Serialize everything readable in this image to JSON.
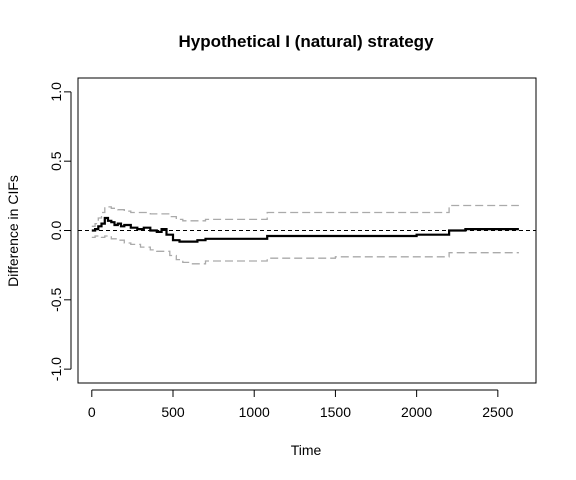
{
  "chart_data": {
    "type": "line",
    "title": "Hypothetical I (natural) strategy",
    "xlabel": "Time",
    "ylabel": "Difference in CIFs",
    "xlim": [
      -85,
      2735
    ],
    "ylim": [
      -1.1,
      1.1
    ],
    "xticks": [
      0,
      500,
      1000,
      1500,
      2000,
      2500
    ],
    "yticks": [
      -1.0,
      -0.5,
      0.0,
      0.5,
      1.0
    ],
    "xtick_labels": [
      "0",
      "500",
      "1000",
      "1500",
      "2000",
      "2500"
    ],
    "ytick_labels": [
      "-1.0",
      "-0.5",
      "0.0",
      "0.5",
      "1.0"
    ],
    "reference_line": {
      "y": 0,
      "style": "dashed",
      "color": "#000000"
    },
    "grid": false,
    "series": [
      {
        "role": "estimate",
        "step": true,
        "color": "#000000",
        "x": [
          0,
          20,
          40,
          60,
          80,
          100,
          120,
          140,
          160,
          180,
          200,
          240,
          280,
          320,
          360,
          400,
          430,
          460,
          500,
          540,
          600,
          650,
          700,
          800,
          900,
          1000,
          1080,
          1500,
          2000,
          2200,
          2300,
          2630
        ],
        "y": [
          0.0,
          0.01,
          0.03,
          0.05,
          0.09,
          0.07,
          0.06,
          0.04,
          0.05,
          0.03,
          0.04,
          0.02,
          0.01,
          0.02,
          0.0,
          -0.01,
          0.01,
          -0.03,
          -0.07,
          -0.08,
          -0.08,
          -0.07,
          -0.06,
          -0.06,
          -0.06,
          -0.06,
          -0.04,
          -0.04,
          -0.03,
          0.0,
          0.01,
          0.01
        ]
      },
      {
        "role": "upper_ci",
        "step": true,
        "color": "#aaaaaa",
        "x": [
          0,
          20,
          40,
          60,
          80,
          120,
          160,
          200,
          240,
          300,
          360,
          400,
          440,
          480,
          520,
          560,
          600,
          700,
          1080,
          1500,
          2000,
          2200,
          2630
        ],
        "y": [
          0.03,
          0.05,
          0.09,
          0.13,
          0.17,
          0.16,
          0.15,
          0.14,
          0.13,
          0.13,
          0.12,
          0.12,
          0.12,
          0.1,
          0.08,
          0.07,
          0.07,
          0.08,
          0.13,
          0.13,
          0.13,
          0.18,
          0.18
        ]
      },
      {
        "role": "lower_ci",
        "step": true,
        "color": "#aaaaaa",
        "x": [
          0,
          20,
          40,
          60,
          80,
          120,
          160,
          200,
          240,
          300,
          360,
          400,
          440,
          480,
          520,
          560,
          600,
          700,
          1080,
          1500,
          2000,
          2200,
          2630
        ],
        "y": [
          -0.05,
          -0.04,
          -0.04,
          -0.05,
          -0.04,
          -0.06,
          -0.07,
          -0.09,
          -0.1,
          -0.12,
          -0.14,
          -0.15,
          -0.15,
          -0.18,
          -0.21,
          -0.23,
          -0.24,
          -0.22,
          -0.2,
          -0.19,
          -0.19,
          -0.16,
          -0.16
        ]
      }
    ]
  }
}
